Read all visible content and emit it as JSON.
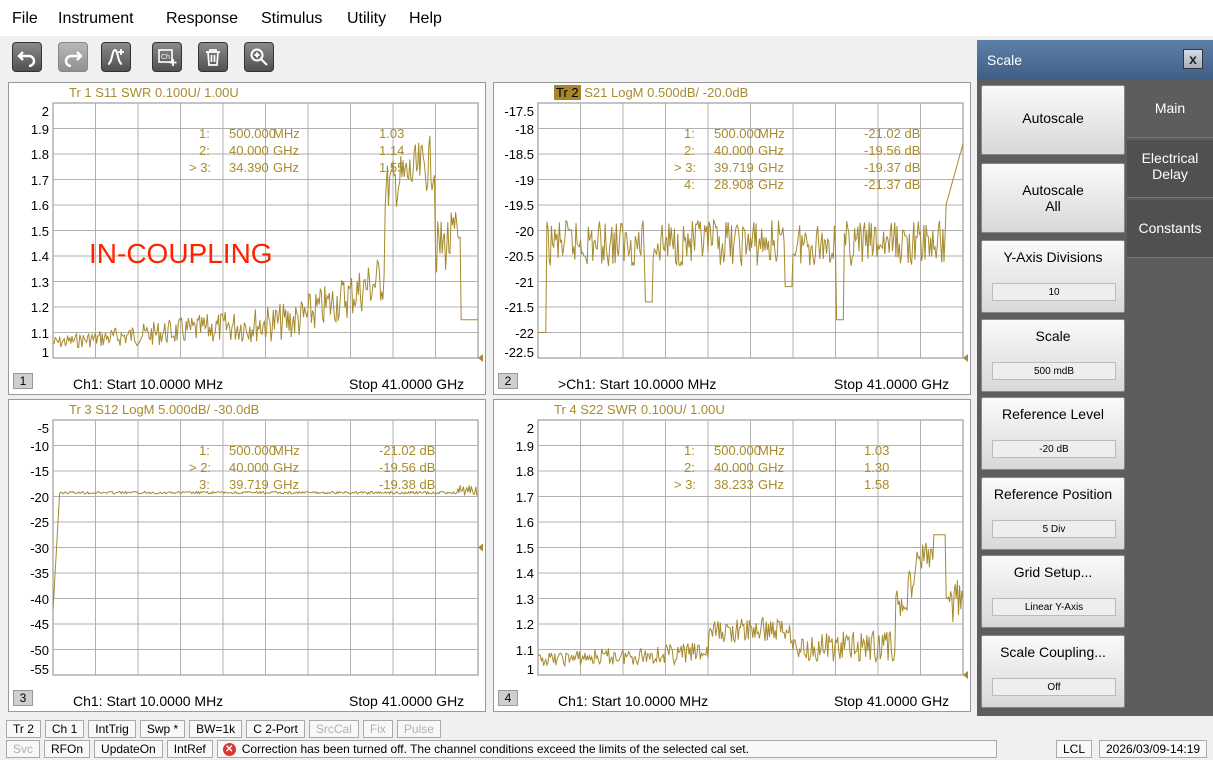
{
  "menu": [
    "File",
    "Instrument",
    "Response",
    "Stimulus",
    "Utility",
    "Help"
  ],
  "toolbar": {
    "buttons": [
      "undo-icon",
      "redo-icon",
      "marker-add-icon",
      "channel-add-icon",
      "trash-icon",
      "zoom-icon"
    ]
  },
  "colors": {
    "trace": "#a58a2e",
    "grid": "#b0b0b0",
    "annotation": "#ff2200",
    "panel": "#5d5d5d"
  },
  "windows": [
    {
      "id": "1",
      "title": "Tr 1  S11 SWR 0.100U/  1.00U",
      "title_highlight": "",
      "yticks": [
        "2",
        "1.9",
        "1.8",
        "1.7",
        "1.6",
        "1.5",
        "1.4",
        "1.3",
        "1.2",
        "1.1",
        "1"
      ],
      "markers": [
        {
          "n": "1:",
          "freq": "500.000",
          "unit": "MHz",
          "val": "1.03"
        },
        {
          "n": "2:",
          "freq": "40.000",
          "unit": "GHz",
          "val": "1.14"
        },
        {
          "n": "> 3:",
          "freq": "34.390",
          "unit": "GHz",
          "val": "1.55"
        }
      ],
      "annotation": "IN-COUPLING",
      "start": "Ch1:  Start  10.0000 MHz",
      "stop": "Stop  41.0000 GHz"
    },
    {
      "id": "2",
      "title": "S21 LogM 0.500dB/  -20.0dB",
      "title_highlight": "Tr  2",
      "yticks": [
        "-17.5",
        "-18",
        "-18.5",
        "-19",
        "-19.5",
        "-20",
        "-20.5",
        "-21",
        "-21.5",
        "-22",
        "-22.5"
      ],
      "markers": [
        {
          "n": "1:",
          "freq": "500.000",
          "unit": "MHz",
          "val": "-21.02 dB"
        },
        {
          "n": "2:",
          "freq": "40.000",
          "unit": "GHz",
          "val": "-19.56 dB"
        },
        {
          "n": "> 3:",
          "freq": "39.719",
          "unit": "GHz",
          "val": "-19.37 dB"
        },
        {
          "n": "4:",
          "freq": "28.908",
          "unit": "GHz",
          "val": "-21.37 dB"
        }
      ],
      "annotation": "",
      "start": ">Ch1:  Start  10.0000 MHz",
      "stop": "Stop  41.0000 GHz"
    },
    {
      "id": "3",
      "title": "Tr  3  S12 LogM 5.000dB/  -30.0dB",
      "title_highlight": "",
      "yticks": [
        "-5",
        "-10",
        "-15",
        "-20",
        "-25",
        "-30",
        "-35",
        "-40",
        "-45",
        "-50",
        "-55"
      ],
      "markers": [
        {
          "n": "1:",
          "freq": "500.000",
          "unit": "MHz",
          "val": "-21.02 dB"
        },
        {
          "n": "> 2:",
          "freq": "40.000",
          "unit": "GHz",
          "val": "-19.56 dB"
        },
        {
          "n": "3:",
          "freq": "39.719",
          "unit": "GHz",
          "val": "-19.38 dB"
        }
      ],
      "annotation": "",
      "start": "Ch1:  Start  10.0000 MHz",
      "stop": "Stop  41.0000 GHz"
    },
    {
      "id": "4",
      "title": "Tr  4  S22 SWR 0.100U/  1.00U",
      "title_highlight": "",
      "yticks": [
        "2",
        "1.9",
        "1.8",
        "1.7",
        "1.6",
        "1.5",
        "1.4",
        "1.3",
        "1.2",
        "1.1",
        "1"
      ],
      "markers": [
        {
          "n": "1:",
          "freq": "500.000",
          "unit": "MHz",
          "val": "1.03"
        },
        {
          "n": "2:",
          "freq": "40.000",
          "unit": "GHz",
          "val": "1.30"
        },
        {
          "n": "> 3:",
          "freq": "38.233",
          "unit": "GHz",
          "val": "1.58"
        }
      ],
      "annotation": "",
      "start": "Ch1:  Start  10.0000 MHz",
      "stop": "Stop  41.0000 GHz"
    }
  ],
  "scale_panel": {
    "title": "Scale",
    "close": "x",
    "tabs": [
      "Main",
      "Electrical\nDelay",
      "Constants"
    ],
    "active_tab": "Main",
    "softkeys": [
      {
        "label": "Autoscale",
        "value": ""
      },
      {
        "label": "Autoscale\nAll",
        "value": ""
      },
      {
        "label": "Y-Axis Divisions",
        "value": "10"
      },
      {
        "label": "Scale",
        "value": "500 mdB"
      },
      {
        "label": "Reference Level",
        "value": "-20 dB"
      },
      {
        "label": "Reference Position",
        "value": "5 Div"
      },
      {
        "label": "Grid Setup...",
        "value": "Linear Y-Axis"
      },
      {
        "label": "Scale Coupling...",
        "value": "Off"
      }
    ]
  },
  "status_row1": [
    {
      "text": "Tr 2",
      "dim": false
    },
    {
      "text": "Ch 1",
      "dim": false
    },
    {
      "text": "IntTrig",
      "dim": false
    },
    {
      "text": "Swp *",
      "dim": false
    },
    {
      "text": "BW=1k",
      "dim": false
    },
    {
      "text": "C  2-Port",
      "dim": false
    },
    {
      "text": "SrcCal",
      "dim": true
    },
    {
      "text": "Fix",
      "dim": true
    },
    {
      "text": "Pulse",
      "dim": true
    }
  ],
  "status_row2": [
    {
      "text": "Svc",
      "dim": true
    },
    {
      "text": "RFOn",
      "dim": false
    },
    {
      "text": "UpdateOn",
      "dim": false
    },
    {
      "text": "IntRef",
      "dim": false
    }
  ],
  "status_message": "Correction has been turned off. The channel conditions exceed the limits of the selected cal set.",
  "status_right": [
    "LCL",
    "2026/03/09-14:19"
  ]
}
